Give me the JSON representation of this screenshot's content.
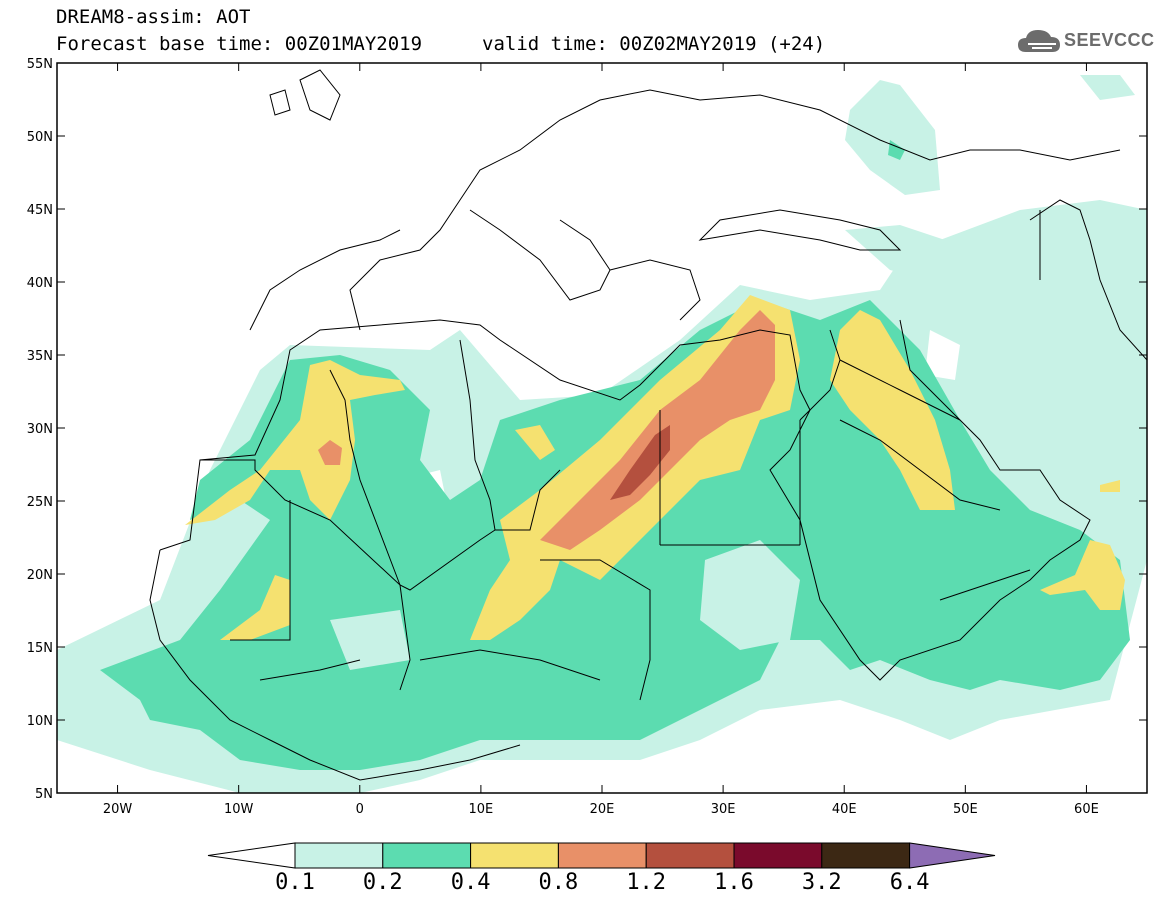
{
  "header": {
    "title": "DREAM8-assim: AOT",
    "base_time": "Forecast base time: 00Z01MAY2019",
    "valid_time": "valid time: 00Z02MAY2019 (+24)",
    "logo_text": "SEEVCCC"
  },
  "axes": {
    "lat_labels": [
      "55N",
      "50N",
      "45N",
      "40N",
      "35N",
      "30N",
      "25N",
      "20N",
      "15N",
      "10N",
      "5N"
    ],
    "lon_labels": [
      "20W",
      "10W",
      "0",
      "10E",
      "20E",
      "30E",
      "40E",
      "50E",
      "60E"
    ],
    "lat_range": [
      5,
      55
    ],
    "lon_range": [
      -25,
      65
    ]
  },
  "legend": {
    "levels": [
      "0.1",
      "0.2",
      "0.4",
      "0.8",
      "1.2",
      "1.6",
      "3.2",
      "6.4"
    ],
    "colors": [
      "#ffffff",
      "#c8f2e6",
      "#5cdcb0",
      "#f5e170",
      "#e89068",
      "#b4503e",
      "#7a0a2c",
      "#3c2814",
      "#8d6cb4"
    ]
  }
}
